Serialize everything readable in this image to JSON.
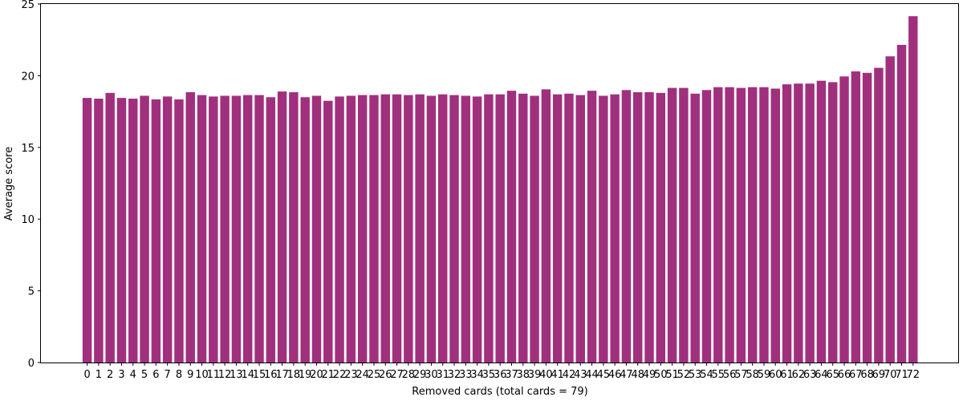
{
  "chart_data": {
    "type": "bar",
    "title": "",
    "xlabel": "Removed cards (total cards = 79)",
    "ylabel": "Average score",
    "ylim": [
      0,
      25
    ],
    "yticks": [
      0,
      5,
      10,
      15,
      20,
      25
    ],
    "grid": false,
    "bar_color": "#a0307e",
    "categories": [
      "0",
      "1",
      "2",
      "3",
      "4",
      "5",
      "6",
      "7",
      "8",
      "9",
      "10",
      "11",
      "12",
      "13",
      "14",
      "15",
      "16",
      "17",
      "18",
      "19",
      "20",
      "21",
      "22",
      "23",
      "24",
      "25",
      "26",
      "27",
      "28",
      "29",
      "30",
      "31",
      "32",
      "33",
      "34",
      "35",
      "36",
      "37",
      "38",
      "39",
      "40",
      "41",
      "42",
      "43",
      "44",
      "45",
      "46",
      "47",
      "48",
      "49",
      "50",
      "51",
      "52",
      "53",
      "54",
      "55",
      "56",
      "57",
      "58",
      "59",
      "60",
      "61",
      "62",
      "63",
      "64",
      "65",
      "66",
      "67",
      "68",
      "69",
      "70",
      "71",
      "72"
    ],
    "values": [
      18.45,
      18.4,
      18.8,
      18.45,
      18.4,
      18.6,
      18.35,
      18.55,
      18.35,
      18.85,
      18.65,
      18.55,
      18.6,
      18.6,
      18.65,
      18.65,
      18.5,
      18.9,
      18.85,
      18.5,
      18.6,
      18.25,
      18.55,
      18.6,
      18.65,
      18.65,
      18.7,
      18.7,
      18.65,
      18.7,
      18.6,
      18.7,
      18.65,
      18.6,
      18.55,
      18.7,
      18.7,
      18.95,
      18.75,
      18.6,
      19.05,
      18.7,
      18.75,
      18.65,
      18.95,
      18.6,
      18.7,
      19.0,
      18.85,
      18.85,
      18.8,
      19.15,
      19.15,
      18.75,
      19.0,
      19.2,
      19.2,
      19.15,
      19.2,
      19.2,
      19.1,
      19.4,
      19.45,
      19.45,
      19.65,
      19.55,
      19.95,
      20.3,
      20.2,
      20.55,
      21.35,
      22.15,
      24.15
    ]
  }
}
